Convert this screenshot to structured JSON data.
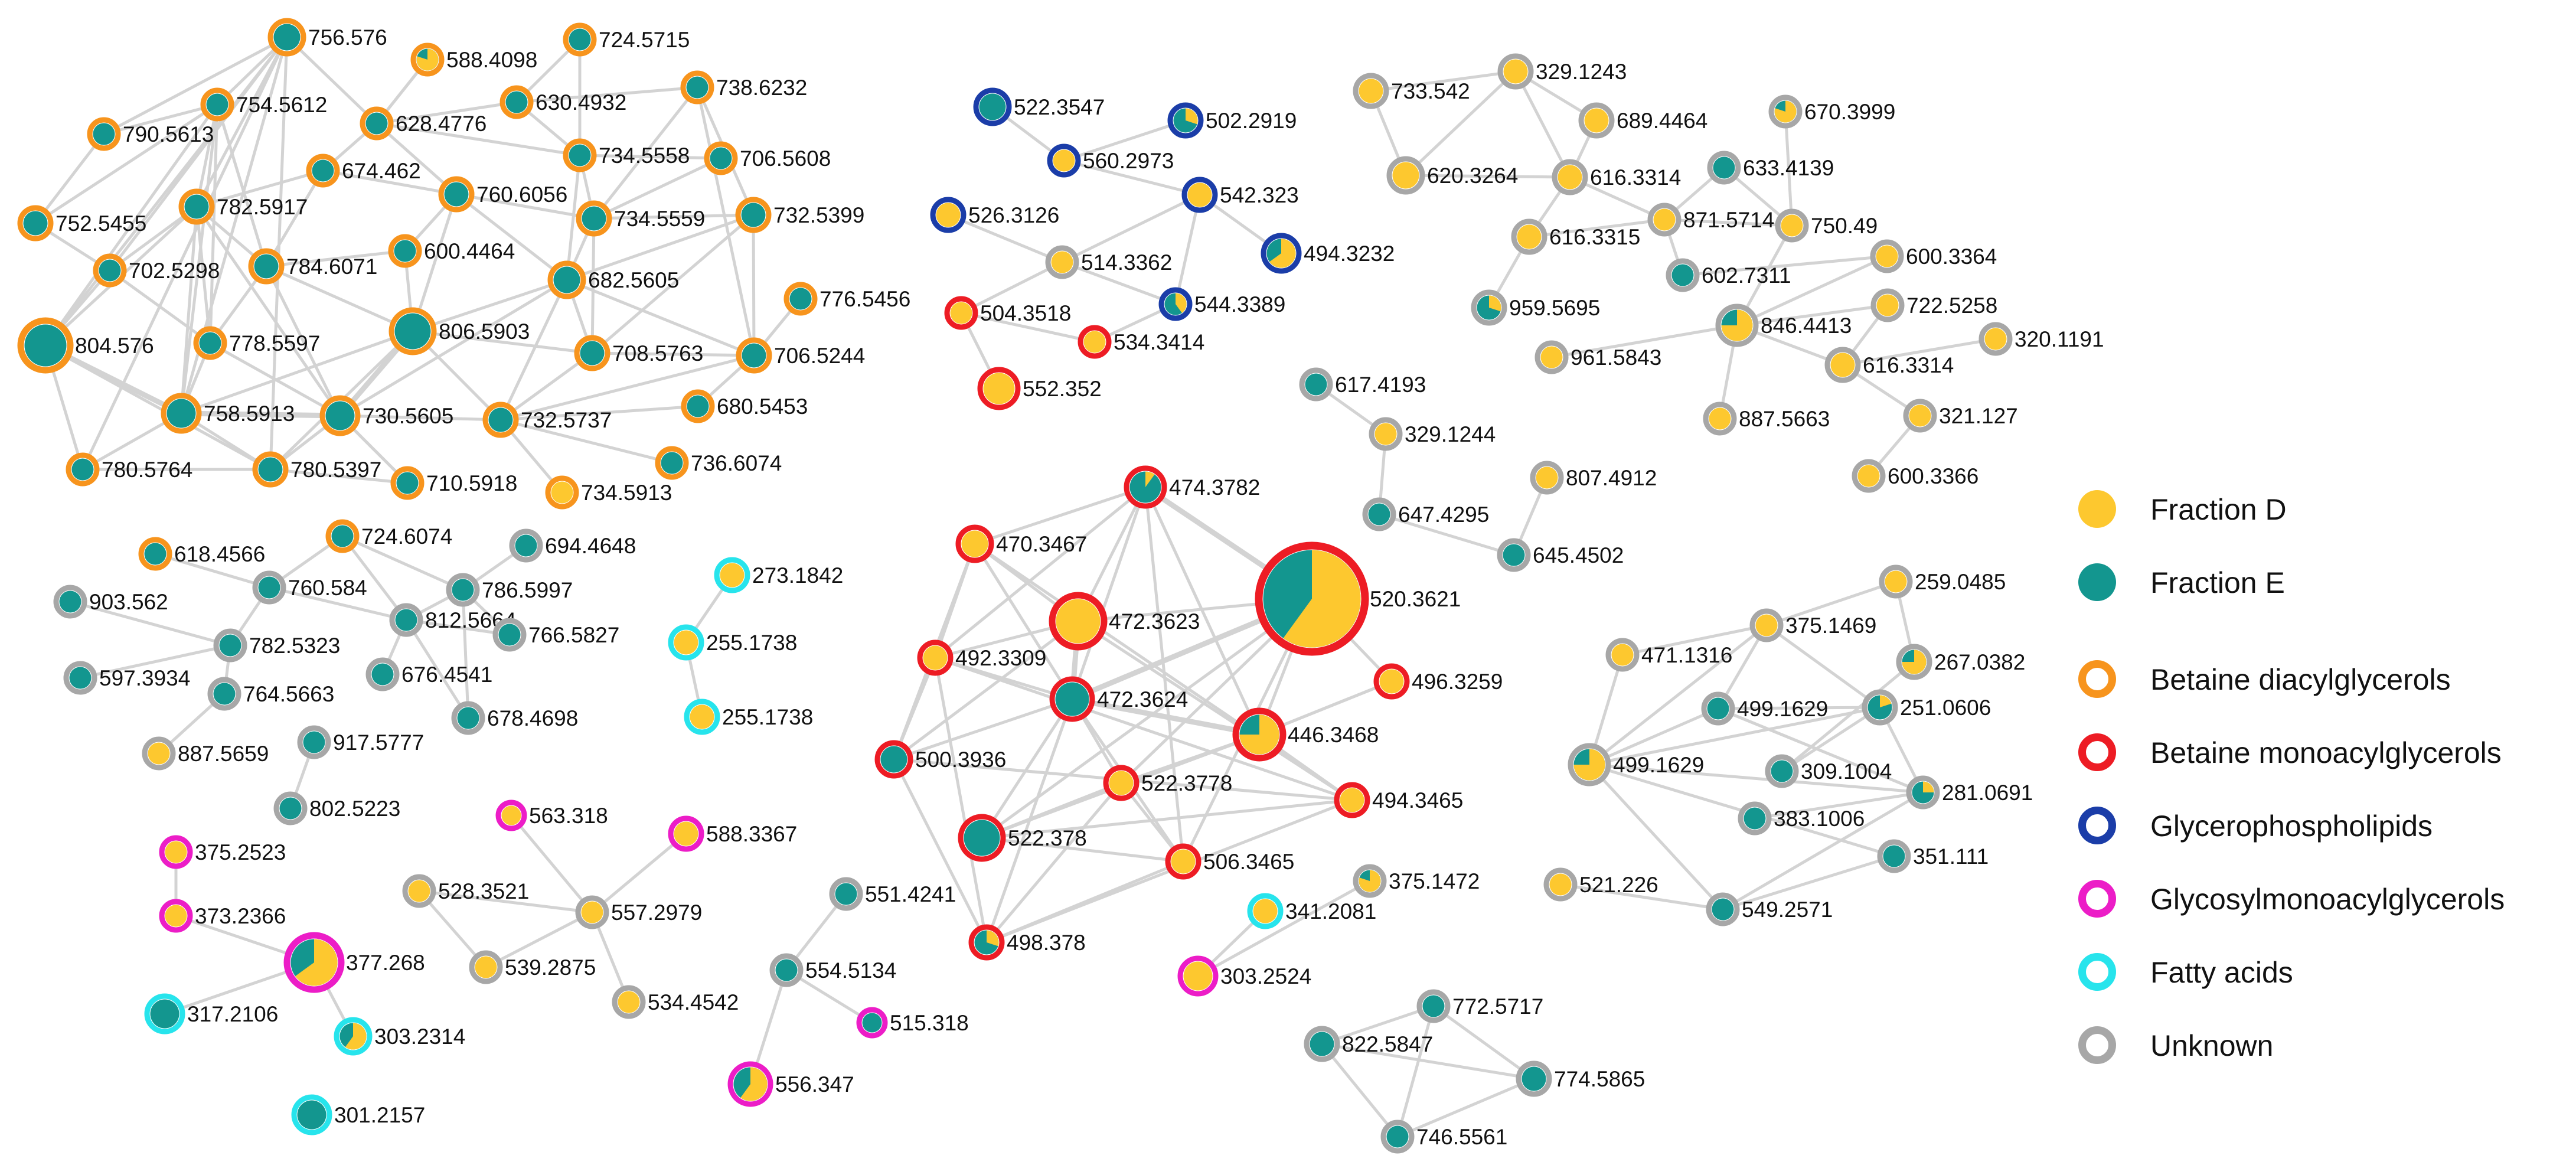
{
  "colors": {
    "fraction_d": "#FDC82F",
    "fraction_e": "#13968F",
    "edge": "#D3D3D3",
    "Betaine diacylglycerols": "#F7941D",
    "Betaine monoacylglycerols": "#ED1C24",
    "Glycerophospholipids": "#1B3DA8",
    "Glycosylmonoacylglycerols": "#EC1DC7",
    "Fatty acids": "#27E4EC",
    "Unknown": "#A7A7A7"
  },
  "legend": {
    "fractions": [
      {
        "label": "Fraction D",
        "key": "fraction_d"
      },
      {
        "label": "Fraction E",
        "key": "fraction_e"
      }
    ],
    "classes": [
      {
        "label": "Betaine diacylglycerols"
      },
      {
        "label": "Betaine monoacylglycerols"
      },
      {
        "label": "Glycerophospholipids"
      },
      {
        "label": "Glycosylmonoacylglycerols"
      },
      {
        "label": "Fatty acids"
      },
      {
        "label": "Unknown"
      }
    ]
  },
  "nodes": [
    {
      "label": "756.576",
      "class": "Betaine diacylglycerols",
      "d": 0
    },
    {
      "label": "588.4098",
      "class": "Betaine diacylglycerols",
      "d": 0.8
    },
    {
      "label": "724.5715",
      "class": "Betaine diacylglycerols",
      "d": 0
    },
    {
      "label": "754.5612",
      "class": "Betaine diacylglycerols",
      "d": 0
    },
    {
      "label": "628.4776",
      "class": "Betaine diacylglycerols",
      "d": 0
    },
    {
      "label": "630.4932",
      "class": "Betaine diacylglycerols",
      "d": 0
    },
    {
      "label": "738.6232",
      "class": "Betaine diacylglycerols",
      "d": 0
    },
    {
      "label": "790.5613",
      "class": "Betaine diacylglycerols",
      "d": 0
    },
    {
      "label": "674.462",
      "class": "Betaine diacylglycerols",
      "d": 0
    },
    {
      "label": "734.5558",
      "class": "Betaine diacylglycerols",
      "d": 0
    },
    {
      "label": "706.5608",
      "class": "Betaine diacylglycerols",
      "d": 0
    },
    {
      "label": "752.5455",
      "class": "Betaine diacylglycerols",
      "d": 0
    },
    {
      "label": "782.5917",
      "class": "Betaine diacylglycerols",
      "d": 0
    },
    {
      "label": "760.6056",
      "class": "Betaine diacylglycerols",
      "d": 0
    },
    {
      "label": "734.5559",
      "class": "Betaine diacylglycerols",
      "d": 0
    },
    {
      "label": "732.5399",
      "class": "Betaine diacylglycerols",
      "d": 0
    },
    {
      "label": "702.5298",
      "class": "Betaine diacylglycerols",
      "d": 0
    },
    {
      "label": "784.6071",
      "class": "Betaine diacylglycerols",
      "d": 0
    },
    {
      "label": "600.4464",
      "class": "Betaine diacylglycerols",
      "d": 0
    },
    {
      "label": "682.5605",
      "class": "Betaine diacylglycerols",
      "d": 0
    },
    {
      "label": "776.5456",
      "class": "Betaine diacylglycerols",
      "d": 0
    },
    {
      "label": "804.576",
      "class": "Betaine diacylglycerols",
      "d": 0
    },
    {
      "label": "778.5597",
      "class": "Betaine diacylglycerols",
      "d": 0
    },
    {
      "label": "806.5903",
      "class": "Betaine diacylglycerols",
      "d": 0
    },
    {
      "label": "708.5763",
      "class": "Betaine diacylglycerols",
      "d": 0
    },
    {
      "label": "706.5244",
      "class": "Betaine diacylglycerols",
      "d": 0
    },
    {
      "label": "758.5913",
      "class": "Betaine diacylglycerols",
      "d": 0
    },
    {
      "label": "730.5605",
      "class": "Betaine diacylglycerols",
      "d": 0
    },
    {
      "label": "732.5737",
      "class": "Betaine diacylglycerols",
      "d": 0
    },
    {
      "label": "680.5453",
      "class": "Betaine diacylglycerols",
      "d": 0
    },
    {
      "label": "780.5764",
      "class": "Betaine diacylglycerols",
      "d": 0
    },
    {
      "label": "780.5397",
      "class": "Betaine diacylglycerols",
      "d": 0
    },
    {
      "label": "710.5918",
      "class": "Betaine diacylglycerols",
      "d": 0
    },
    {
      "label": "736.6074",
      "class": "Betaine diacylglycerols",
      "d": 0
    },
    {
      "label": "734.5913",
      "class": "Betaine diacylglycerols",
      "d": 1
    },
    {
      "label": "522.3547",
      "class": "Glycerophospholipids",
      "d": 0
    },
    {
      "label": "502.2919",
      "class": "Glycerophospholipids",
      "d": 0.3
    },
    {
      "label": "560.2973",
      "class": "Glycerophospholipids",
      "d": 1
    },
    {
      "label": "542.323",
      "class": "Glycerophospholipids",
      "d": 1
    },
    {
      "label": "526.3126",
      "class": "Glycerophospholipids",
      "d": 1
    },
    {
      "label": "494.3232",
      "class": "Glycerophospholipids",
      "d": 0.65
    },
    {
      "label": "514.3362",
      "class": "Unknown",
      "d": 1
    },
    {
      "label": "544.3389",
      "class": "Glycerophospholipids",
      "d": 0.4
    },
    {
      "label": "504.3518",
      "class": "Betaine monoacylglycerols",
      "d": 1
    },
    {
      "label": "534.3414",
      "class": "Betaine monoacylglycerols",
      "d": 1
    },
    {
      "label": "552.352",
      "class": "Betaine monoacylglycerols",
      "d": 1
    },
    {
      "label": "733.542",
      "class": "Unknown",
      "d": 1
    },
    {
      "label": "329.1243",
      "class": "Unknown",
      "d": 1
    },
    {
      "label": "689.4464",
      "class": "Unknown",
      "d": 1
    },
    {
      "label": "670.3999",
      "class": "Unknown",
      "d": 0.8
    },
    {
      "label": "620.3264",
      "class": "Unknown",
      "d": 1
    },
    {
      "label": "616.3314",
      "class": "Unknown",
      "d": 1
    },
    {
      "label": "633.4139",
      "class": "Unknown",
      "d": 0
    },
    {
      "label": "871.5714",
      "class": "Unknown",
      "d": 1
    },
    {
      "label": "750.49",
      "class": "Unknown",
      "d": 1
    },
    {
      "label": "616.3315",
      "class": "Unknown",
      "d": 1
    },
    {
      "label": "602.7311",
      "class": "Unknown",
      "d": 0
    },
    {
      "label": "600.3364",
      "class": "Unknown",
      "d": 1
    },
    {
      "label": "959.5695",
      "class": "Unknown",
      "d": 0.3
    },
    {
      "label": "846.4413",
      "class": "Unknown",
      "d": 0.75
    },
    {
      "label": "722.5258",
      "class": "Unknown",
      "d": 1
    },
    {
      "label": "961.5843",
      "class": "Unknown",
      "d": 1
    },
    {
      "label": "616.3314",
      "class": "Unknown",
      "d": 1
    },
    {
      "label": "320.1191",
      "class": "Unknown",
      "d": 1
    },
    {
      "label": "887.5663",
      "class": "Unknown",
      "d": 1
    },
    {
      "label": "321.127",
      "class": "Unknown",
      "d": 1
    },
    {
      "label": "600.3366",
      "class": "Unknown",
      "d": 1
    },
    {
      "label": "617.4193",
      "class": "Unknown",
      "d": 0
    },
    {
      "label": "329.1244",
      "class": "Unknown",
      "d": 1
    },
    {
      "label": "807.4912",
      "class": "Unknown",
      "d": 1
    },
    {
      "label": "647.4295",
      "class": "Unknown",
      "d": 0
    },
    {
      "label": "645.4502",
      "class": "Unknown",
      "d": 0
    },
    {
      "label": "474.3782",
      "class": "Betaine monoacylglycerols",
      "d": 0.1
    },
    {
      "label": "470.3467",
      "class": "Betaine monoacylglycerols",
      "d": 1
    },
    {
      "label": "472.3623",
      "class": "Betaine monoacylglycerols",
      "d": 1
    },
    {
      "label": "520.3621",
      "class": "Betaine monoacylglycerols",
      "d": 0.6
    },
    {
      "label": "492.3309",
      "class": "Betaine monoacylglycerols",
      "d": 1
    },
    {
      "label": "496.3259",
      "class": "Betaine monoacylglycerols",
      "d": 1
    },
    {
      "label": "472.3624",
      "class": "Betaine monoacylglycerols",
      "d": 0
    },
    {
      "label": "446.3468",
      "class": "Betaine monoacylglycerols",
      "d": 0.75
    },
    {
      "label": "500.3936",
      "class": "Betaine monoacylglycerols",
      "d": 0
    },
    {
      "label": "522.3778",
      "class": "Betaine monoacylglycerols",
      "d": 1
    },
    {
      "label": "494.3465",
      "class": "Betaine monoacylglycerols",
      "d": 1
    },
    {
      "label": "522.378",
      "class": "Betaine monoacylglycerols",
      "d": 0
    },
    {
      "label": "506.3465",
      "class": "Betaine monoacylglycerols",
      "d": 1
    },
    {
      "label": "498.378",
      "class": "Betaine monoacylglycerols",
      "d": 0.3
    },
    {
      "label": "618.4566",
      "class": "Betaine diacylglycerols",
      "d": 0
    },
    {
      "label": "724.6074",
      "class": "Betaine diacylglycerols",
      "d": 0
    },
    {
      "label": "694.4648",
      "class": "Unknown",
      "d": 0
    },
    {
      "label": "903.562",
      "class": "Unknown",
      "d": 0
    },
    {
      "label": "760.584",
      "class": "Unknown",
      "d": 0
    },
    {
      "label": "786.5997",
      "class": "Unknown",
      "d": 0
    },
    {
      "label": "812.5664",
      "class": "Unknown",
      "d": 0
    },
    {
      "label": "766.5827",
      "class": "Unknown",
      "d": 0
    },
    {
      "label": "782.5323",
      "class": "Unknown",
      "d": 0
    },
    {
      "label": "597.3934",
      "class": "Unknown",
      "d": 0
    },
    {
      "label": "676.4541",
      "class": "Unknown",
      "d": 0
    },
    {
      "label": "764.5663",
      "class": "Unknown",
      "d": 0
    },
    {
      "label": "678.4698",
      "class": "Unknown",
      "d": 0
    },
    {
      "label": "917.5777",
      "class": "Unknown",
      "d": 0
    },
    {
      "label": "887.5659",
      "class": "Unknown",
      "d": 1
    },
    {
      "label": "802.5223",
      "class": "Unknown",
      "d": 0
    },
    {
      "label": "273.1842",
      "class": "Fatty acids",
      "d": 1
    },
    {
      "label": "255.1738",
      "class": "Fatty acids",
      "d": 1
    },
    {
      "label": "255.1738",
      "class": "Fatty acids",
      "d": 1
    },
    {
      "label": "259.0485",
      "class": "Unknown",
      "d": 1
    },
    {
      "label": "375.1469",
      "class": "Unknown",
      "d": 1
    },
    {
      "label": "471.1316",
      "class": "Unknown",
      "d": 1
    },
    {
      "label": "267.0382",
      "class": "Unknown",
      "d": 0.75
    },
    {
      "label": "499.1629",
      "class": "Unknown",
      "d": 0
    },
    {
      "label": "251.0606",
      "class": "Unknown",
      "d": 0.2
    },
    {
      "label": "499.1629",
      "class": "Unknown",
      "d": 0.75
    },
    {
      "label": "309.1004",
      "class": "Unknown",
      "d": 0
    },
    {
      "label": "281.0691",
      "class": "Unknown",
      "d": 0.25
    },
    {
      "label": "383.1006",
      "class": "Unknown",
      "d": 0
    },
    {
      "label": "351.111",
      "class": "Unknown",
      "d": 0
    },
    {
      "label": "521.226",
      "class": "Unknown",
      "d": 1
    },
    {
      "label": "549.2571",
      "class": "Unknown",
      "d": 0
    },
    {
      "label": "563.318",
      "class": "Glycosylmonoacylglycerols",
      "d": 1
    },
    {
      "label": "588.3367",
      "class": "Glycosylmonoacylglycerols",
      "d": 1
    },
    {
      "label": "375.2523",
      "class": "Glycosylmonoacylglycerols",
      "d": 1
    },
    {
      "label": "528.3521",
      "class": "Unknown",
      "d": 1
    },
    {
      "label": "557.2979",
      "class": "Unknown",
      "d": 1
    },
    {
      "label": "373.2366",
      "class": "Glycosylmonoacylglycerols",
      "d": 1
    },
    {
      "label": "377.268",
      "class": "Glycosylmonoacylglycerols",
      "d": 0.65
    },
    {
      "label": "539.2875",
      "class": "Unknown",
      "d": 1
    },
    {
      "label": "534.4542",
      "class": "Unknown",
      "d": 1
    },
    {
      "label": "317.2106",
      "class": "Fatty acids",
      "d": 0
    },
    {
      "label": "303.2314",
      "class": "Fatty acids",
      "d": 0.6
    },
    {
      "label": "301.2157",
      "class": "Fatty acids",
      "d": 0
    },
    {
      "label": "551.4241",
      "class": "Unknown",
      "d": 0
    },
    {
      "label": "554.5134",
      "class": "Unknown",
      "d": 0
    },
    {
      "label": "515.318",
      "class": "Glycosylmonoacylglycerols",
      "d": 0
    },
    {
      "label": "556.347",
      "class": "Glycosylmonoacylglycerols",
      "d": 0.6
    },
    {
      "label": "375.1472",
      "class": "Unknown",
      "d": 0.8
    },
    {
      "label": "341.2081",
      "class": "Fatty acids",
      "d": 1
    },
    {
      "label": "303.2524",
      "class": "Glycosylmonoacylglycerols",
      "d": 1
    },
    {
      "label": "772.5717",
      "class": "Unknown",
      "d": 0
    },
    {
      "label": "822.5847",
      "class": "Unknown",
      "d": 0
    },
    {
      "label": "774.5865",
      "class": "Unknown",
      "d": 0
    },
    {
      "label": "746.5561",
      "class": "Unknown",
      "d": 0
    }
  ]
}
